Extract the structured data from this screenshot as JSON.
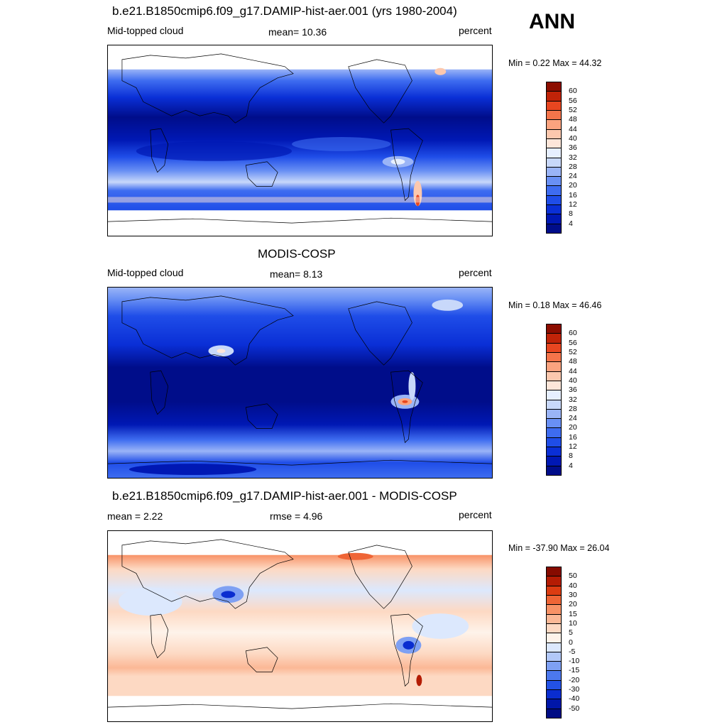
{
  "season": "ANN",
  "panels": [
    {
      "id": "test",
      "title": "b.e21.B1850cmip6.f09_g17.DAMIP-hist-aer.001 (yrs 1980-2004)",
      "left_label": "Mid-topped cloud",
      "center_label": "mean=  10.36",
      "right_label": "percent",
      "minmax": "Min =   0.22 Max =  44.32",
      "colorbar": {
        "levels": [
          "4",
          "8",
          "12",
          "16",
          "20",
          "24",
          "28",
          "32",
          "36",
          "40",
          "44",
          "48",
          "52",
          "56",
          "60"
        ],
        "colors": [
          "#000d8a",
          "#0018b4",
          "#0a2fd6",
          "#1f4de8",
          "#3e6cf0",
          "#6990f4",
          "#9ab4f7",
          "#c8d8fa",
          "#e6efff",
          "#fde6d9",
          "#fcc8ae",
          "#fba37f",
          "#f5744a",
          "#e84620",
          "#c02308",
          "#8c0d00"
        ]
      }
    },
    {
      "id": "obs",
      "title": "MODIS-COSP",
      "left_label": "Mid-topped cloud",
      "center_label": "mean=   8.13",
      "right_label": "percent",
      "minmax": "Min =   0.18 Max =  46.46",
      "colorbar": {
        "levels": [
          "4",
          "8",
          "12",
          "16",
          "20",
          "24",
          "28",
          "32",
          "36",
          "40",
          "44",
          "48",
          "52",
          "56",
          "60"
        ],
        "colors": [
          "#000d8a",
          "#0018b4",
          "#0a2fd6",
          "#1f4de8",
          "#3e6cf0",
          "#6990f4",
          "#9ab4f7",
          "#c8d8fa",
          "#e6efff",
          "#fde6d9",
          "#fcc8ae",
          "#fba37f",
          "#f5744a",
          "#e84620",
          "#c02308",
          "#8c0d00"
        ]
      }
    },
    {
      "id": "diff",
      "title": "b.e21.B1850cmip6.f09_g17.DAMIP-hist-aer.001 - MODIS-COSP",
      "left_label": "mean =   2.22",
      "center_label": "rmse =   4.96",
      "right_label": "percent",
      "minmax": "Min = -37.90 Max =  26.04",
      "colorbar": {
        "levels": [
          "-50",
          "-40",
          "-30",
          "-20",
          "-15",
          "-10",
          "-5",
          "0",
          "5",
          "10",
          "15",
          "20",
          "30",
          "40",
          "50"
        ],
        "colors": [
          "#000c84",
          "#0016a8",
          "#0a2dd0",
          "#2352e6",
          "#4c78ee",
          "#7ea0f3",
          "#b2c8f8",
          "#dce8fd",
          "#fef3ea",
          "#fdd9c3",
          "#fbb896",
          "#f89266",
          "#ef6536",
          "#dc3c12",
          "#b41c04",
          "#860b00"
        ]
      }
    }
  ]
}
